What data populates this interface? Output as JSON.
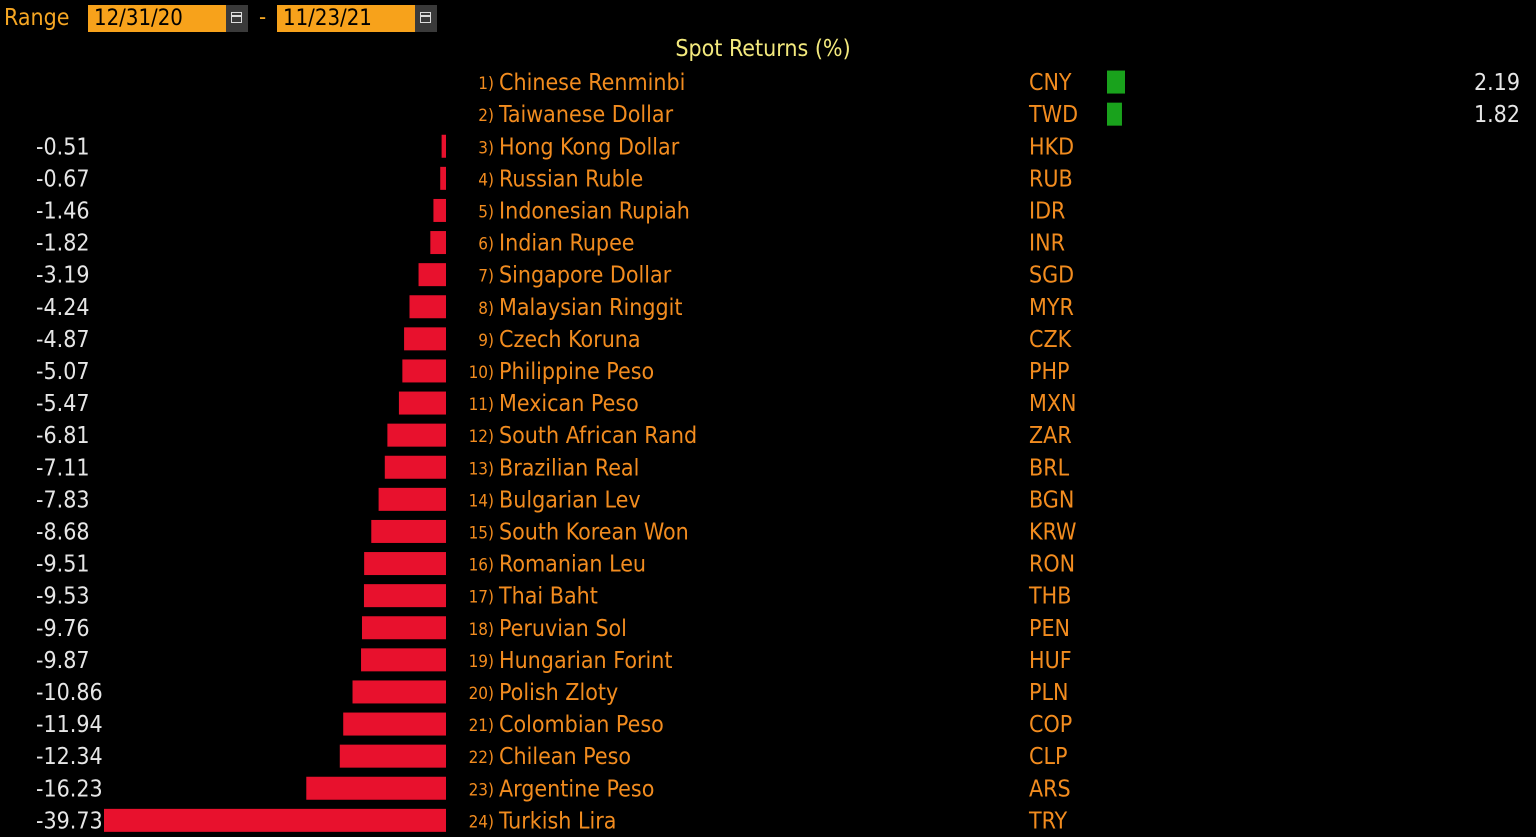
{
  "header": {
    "range_label": "Range",
    "start_date": "12/31/20",
    "end_date": "11/23/21",
    "separator": "-",
    "start_calendar_icon": "calendar-icon",
    "end_calendar_icon": "calendar-icon"
  },
  "colors": {
    "background": "#000000",
    "negative_bar": "#e8112d",
    "positive_bar": "#19a21c",
    "orange_text": "#f28c1f",
    "title_text": "#f3e97d",
    "date_box": "#f7a21b"
  },
  "chart_data": {
    "type": "bar",
    "orientation": "horizontal",
    "title": "Spot Returns (%)",
    "xlabel": "",
    "ylabel": "",
    "grid": false,
    "legend": false,
    "rows": [
      {
        "rank": "1)",
        "name": "Chinese Renminbi",
        "code": "CNY",
        "value": 2.19
      },
      {
        "rank": "2)",
        "name": "Taiwanese Dollar",
        "code": "TWD",
        "value": 1.82
      },
      {
        "rank": "3)",
        "name": "Hong Kong Dollar",
        "code": "HKD",
        "value": -0.51
      },
      {
        "rank": "4)",
        "name": "Russian Ruble",
        "code": "RUB",
        "value": -0.67
      },
      {
        "rank": "5)",
        "name": "Indonesian Rupiah",
        "code": "IDR",
        "value": -1.46
      },
      {
        "rank": "6)",
        "name": "Indian Rupee",
        "code": "INR",
        "value": -1.82
      },
      {
        "rank": "7)",
        "name": "Singapore Dollar",
        "code": "SGD",
        "value": -3.19
      },
      {
        "rank": "8)",
        "name": "Malaysian Ringgit",
        "code": "MYR",
        "value": -4.24
      },
      {
        "rank": "9)",
        "name": "Czech Koruna",
        "code": "CZK",
        "value": -4.87
      },
      {
        "rank": "10)",
        "name": "Philippine Peso",
        "code": "PHP",
        "value": -5.07
      },
      {
        "rank": "11)",
        "name": "Mexican Peso",
        "code": "MXN",
        "value": -5.47
      },
      {
        "rank": "12)",
        "name": "South African Rand",
        "code": "ZAR",
        "value": -6.81
      },
      {
        "rank": "13)",
        "name": "Brazilian Real",
        "code": "BRL",
        "value": -7.11
      },
      {
        "rank": "14)",
        "name": "Bulgarian Lev",
        "code": "BGN",
        "value": -7.83
      },
      {
        "rank": "15)",
        "name": "South Korean Won",
        "code": "KRW",
        "value": -8.68
      },
      {
        "rank": "16)",
        "name": "Romanian Leu",
        "code": "RON",
        "value": -9.51
      },
      {
        "rank": "17)",
        "name": "Thai Baht",
        "code": "THB",
        "value": -9.53
      },
      {
        "rank": "18)",
        "name": "Peruvian Sol",
        "code": "PEN",
        "value": -9.76
      },
      {
        "rank": "19)",
        "name": "Hungarian Forint",
        "code": "HUF",
        "value": -9.87
      },
      {
        "rank": "20)",
        "name": "Polish Zloty",
        "code": "PLN",
        "value": -10.86
      },
      {
        "rank": "21)",
        "name": "Colombian Peso",
        "code": "COP",
        "value": -11.94
      },
      {
        "rank": "22)",
        "name": "Chilean Peso",
        "code": "CLP",
        "value": -12.34
      },
      {
        "rank": "23)",
        "name": "Argentine Peso",
        "code": "ARS",
        "value": -16.23
      },
      {
        "rank": "24)",
        "name": "Turkish Lira",
        "code": "TRY",
        "value": -39.73
      }
    ]
  }
}
